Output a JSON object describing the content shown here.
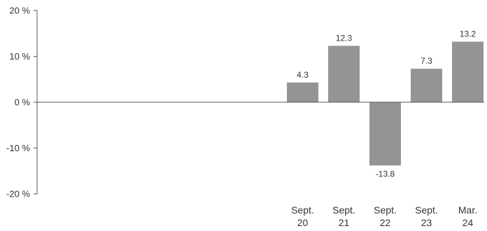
{
  "chart_data": {
    "type": "bar",
    "categories": [
      [
        "Sept.",
        "20"
      ],
      [
        "Sept.",
        "21"
      ],
      [
        "Sept.",
        "22"
      ],
      [
        "Sept.",
        "23"
      ],
      [
        "Mar.",
        "24"
      ]
    ],
    "values": [
      4.3,
      12.3,
      -13.8,
      7.3,
      13.2
    ],
    "data_labels": [
      "4.3",
      "12.3",
      "-13.8",
      "7.3",
      "13.2"
    ],
    "yticks": [
      {
        "value": 20,
        "label": "20 %"
      },
      {
        "value": 10,
        "label": "10 %"
      },
      {
        "value": 0,
        "label": "0 %"
      },
      {
        "value": -10,
        "label": "-10 %"
      },
      {
        "value": -20,
        "label": "-20 %"
      }
    ],
    "ylim": [
      -20,
      20
    ],
    "bar_color": "#949494",
    "axis_color": "#555555",
    "grid": false,
    "legend": "none"
  }
}
